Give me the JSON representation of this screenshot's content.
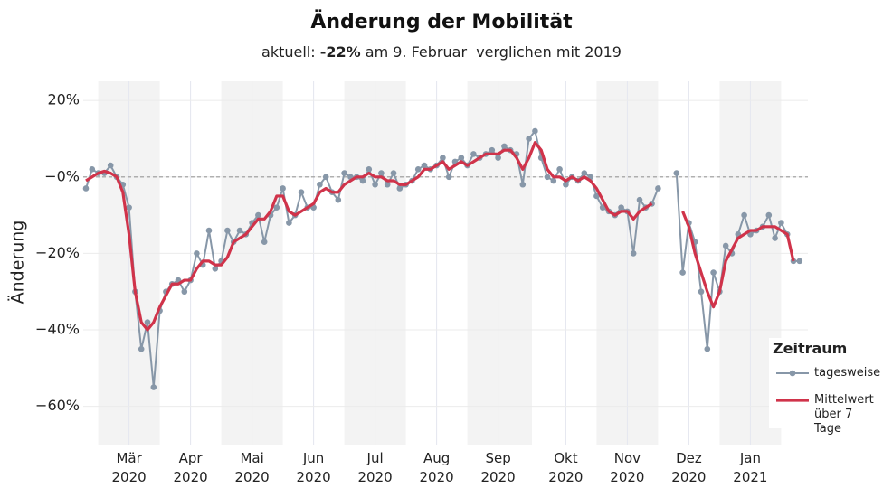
{
  "chart_data": {
    "type": "line",
    "title": "Änderung der Mobilität",
    "subtitle": {
      "prefix": "aktuell: ",
      "highlight": "-22%",
      "suffix": " am 9. Februar  verglichen mit 2019"
    },
    "y_label": "Änderung",
    "legend_title": "Zeitraum",
    "legend": "right",
    "grid": true,
    "categories": [
      null,
      null,
      null,
      null,
      null,
      null,
      null,
      "Mär\n2020",
      null,
      null,
      null,
      null,
      null,
      null,
      null,
      null,
      null,
      "Apr\n2020",
      null,
      null,
      null,
      null,
      null,
      null,
      null,
      null,
      null,
      "Mai\n2020",
      null,
      null,
      null,
      null,
      null,
      null,
      null,
      null,
      null,
      "Jun\n2020",
      null,
      null,
      null,
      null,
      null,
      null,
      null,
      null,
      null,
      "Jul\n2020",
      null,
      null,
      null,
      null,
      null,
      null,
      null,
      null,
      null,
      "Aug\n2020",
      null,
      null,
      null,
      null,
      null,
      null,
      null,
      null,
      null,
      "Sep\n2020",
      null,
      null,
      null,
      null,
      null,
      null,
      null,
      null,
      null,
      null,
      "Okt\n2020",
      null,
      null,
      null,
      null,
      null,
      null,
      null,
      null,
      null,
      "Nov\n2020",
      null,
      null,
      null,
      null,
      null,
      null,
      null,
      null,
      null,
      "Dez\n2020",
      null,
      null,
      null,
      null,
      null,
      null,
      null,
      null,
      null,
      "Jan\n2021",
      null,
      null,
      null,
      null,
      null,
      null,
      null,
      null
    ],
    "series": [
      {
        "name": "tagesweise",
        "color": "#8797a8",
        "markers": true,
        "values": [
          -3,
          2,
          1,
          1,
          3,
          0,
          -2,
          -8,
          -30,
          -45,
          -38,
          -55,
          -35,
          -30,
          -28,
          -27,
          -30,
          -27,
          -20,
          -23,
          -14,
          -24,
          -22,
          -14,
          -17,
          -14,
          -15,
          -12,
          -10,
          -17,
          -10,
          -8,
          -3,
          -12,
          -10,
          -4,
          -8,
          -8,
          -2,
          0,
          -4,
          -6,
          1,
          0,
          0,
          -1,
          2,
          -2,
          1,
          -2,
          1,
          -3,
          -2,
          -1,
          2,
          3,
          2,
          3,
          5,
          0,
          4,
          5,
          3,
          6,
          5,
          6,
          7,
          5,
          8,
          7,
          6,
          -2,
          10,
          12,
          5,
          0,
          -1,
          2,
          -2,
          0,
          -1,
          1,
          0,
          -5,
          -8,
          -9,
          -10,
          -8,
          -9,
          -20,
          -6,
          -8,
          -7,
          -3,
          null,
          null,
          1,
          -25,
          -12,
          -17,
          -30,
          -45,
          -25,
          -30,
          -18,
          -20,
          -15,
          -10,
          -15,
          -14,
          -13,
          -10,
          -16,
          -12,
          -15,
          -22,
          -22
        ]
      },
      {
        "name": "Mittelwert\nüber 7 Tage",
        "color": "#d0334a",
        "markers": false,
        "values": [
          -1,
          0,
          1,
          1.5,
          1,
          0,
          -4,
          -15,
          -30,
          -38,
          -40,
          -38,
          -34,
          -31,
          -28,
          -28,
          -27,
          -27,
          -24,
          -22,
          -22,
          -23,
          -23,
          -21,
          -17,
          -16,
          -15,
          -13,
          -11,
          -11,
          -9,
          -5,
          -5,
          -9,
          -10,
          -9,
          -8,
          -7,
          -4,
          -3,
          -4,
          -4,
          -2,
          -1,
          0,
          0,
          1,
          0,
          0,
          -1,
          -1,
          -2,
          -2,
          -1,
          0,
          2,
          2,
          3,
          4,
          2,
          3,
          4,
          3,
          4,
          5,
          6,
          6,
          6,
          7,
          7,
          5,
          2,
          5,
          9,
          7,
          2,
          0,
          0,
          -1,
          0,
          -1,
          0,
          -1,
          -3,
          -6,
          -9,
          -10,
          -9,
          -9,
          -11,
          -9,
          -8,
          -7,
          null,
          null,
          null,
          null,
          -9,
          -13,
          -20,
          -25,
          -30,
          -34,
          -30,
          -22,
          -19,
          -16,
          -15,
          -14,
          -14,
          -13,
          -13,
          -13,
          -14,
          -15,
          -22,
          null
        ]
      }
    ],
    "ylim": [
      -70,
      25
    ],
    "yticks": [
      {
        "value": -60,
        "label": "−60%"
      },
      {
        "value": -40,
        "label": "−40%"
      },
      {
        "value": -20,
        "label": "−20%"
      },
      {
        "value": 0,
        "label": "−0%"
      },
      {
        "value": 20,
        "label": "20%"
      }
    ]
  }
}
